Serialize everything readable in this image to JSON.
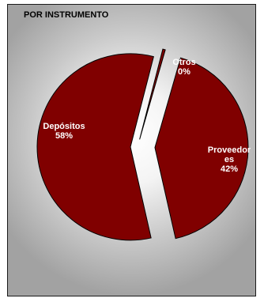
{
  "chart_data": {
    "type": "pie",
    "title": "POR INSTRUMENTO",
    "exploded": true,
    "slices": [
      {
        "label": "Depósitos",
        "label_lines": [
          "Depósitos",
          "58%"
        ],
        "value": 58,
        "color": "#800000"
      },
      {
        "label": "Proveedores",
        "label_lines": [
          "Proveedor",
          "es",
          "42%"
        ],
        "value": 42,
        "color": "#800000"
      },
      {
        "label": "Otros",
        "label_lines": [
          "Otros",
          "0%"
        ],
        "value": 0,
        "color": "#800000"
      }
    ]
  }
}
